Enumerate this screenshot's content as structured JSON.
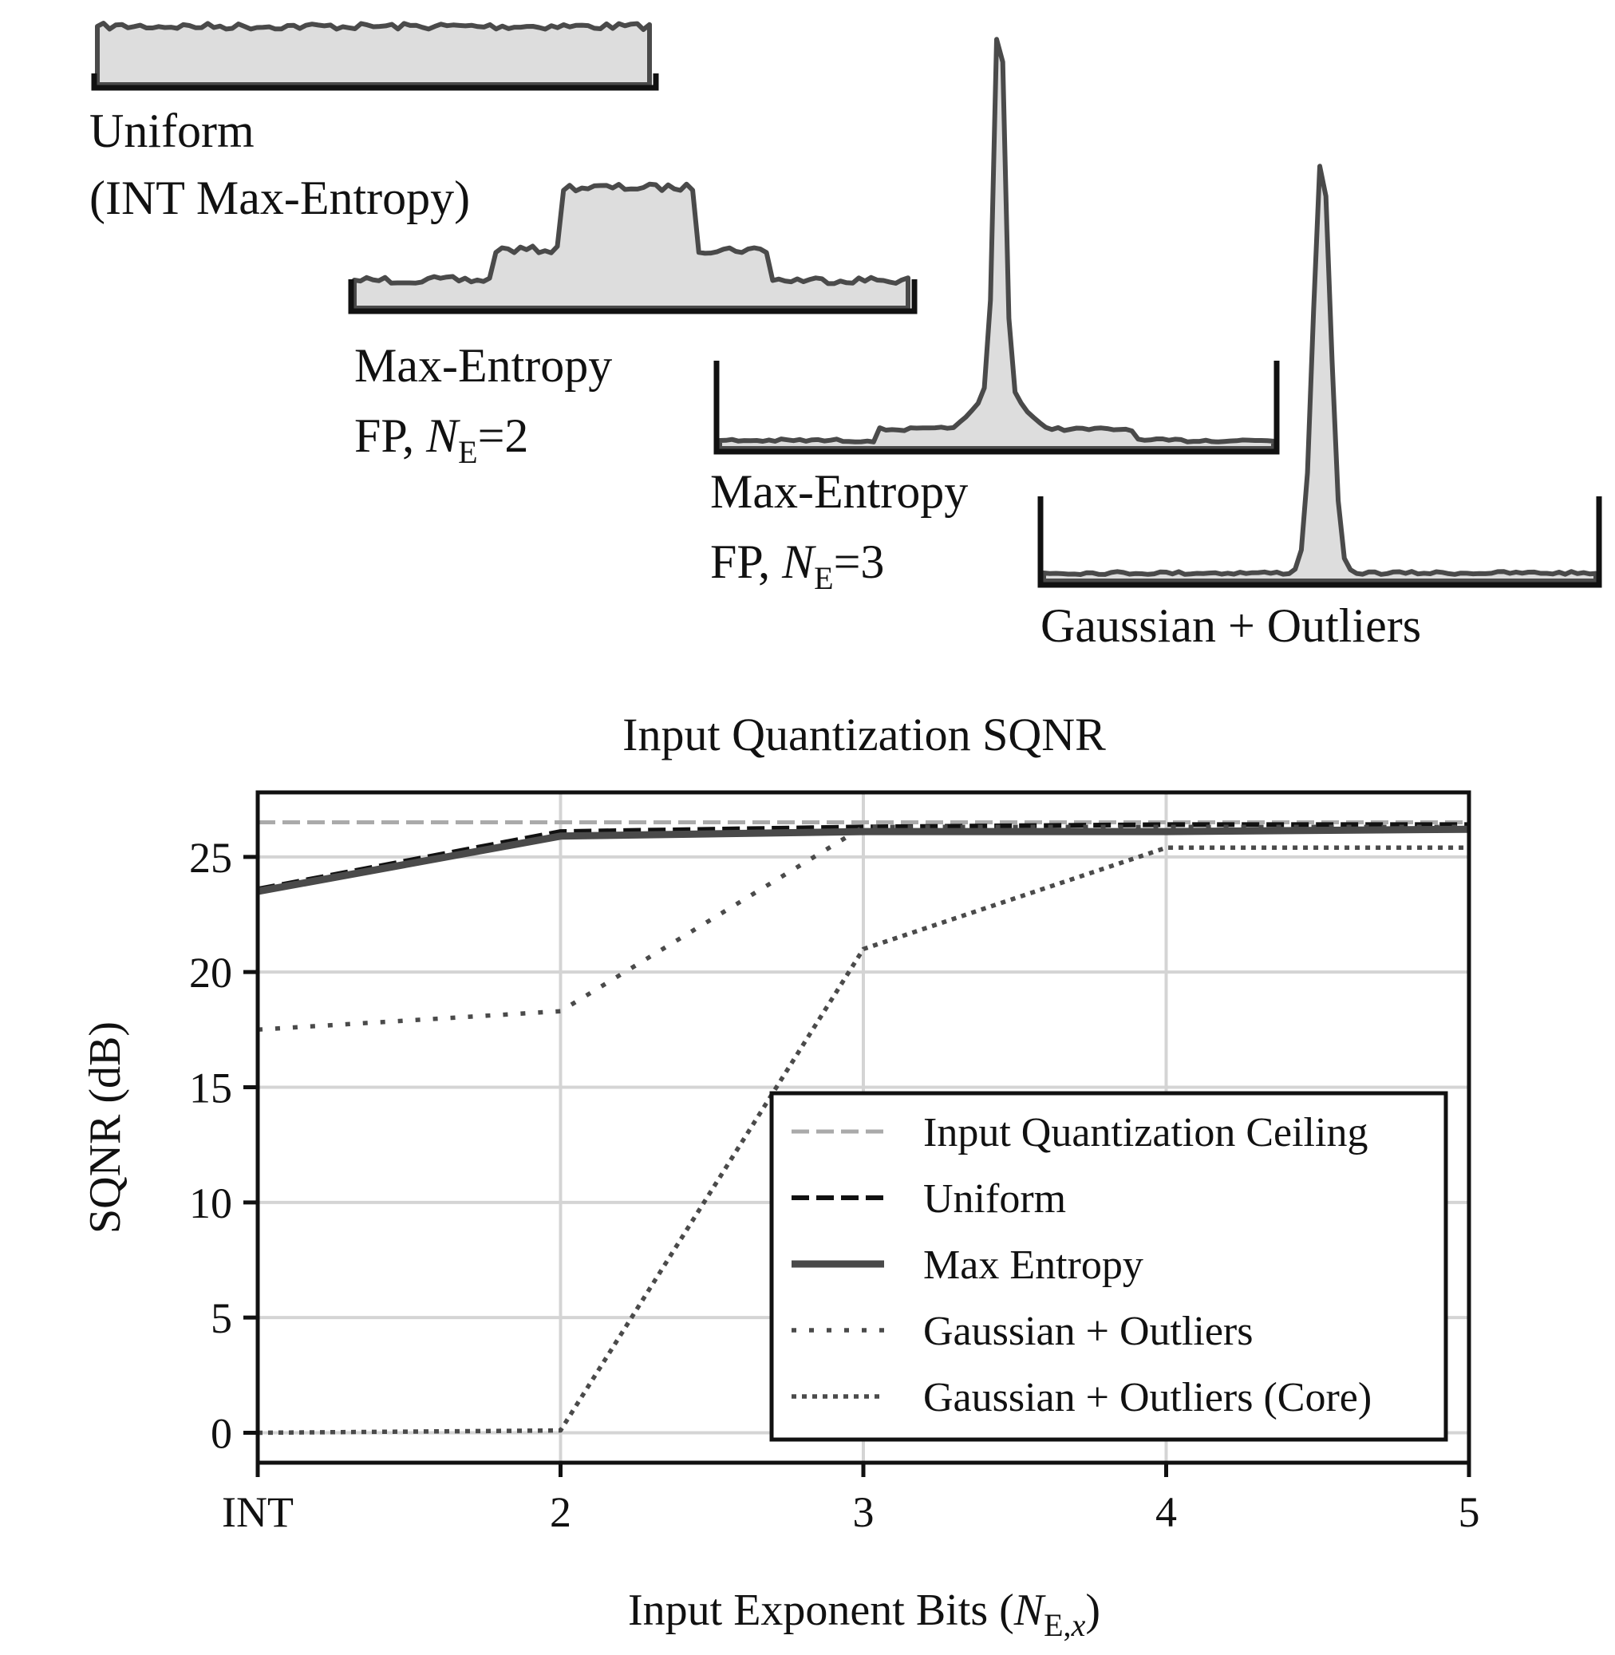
{
  "distributions": [
    {
      "id": "uniform",
      "label_lines": [
        "Uniform",
        "(INT Max-Entropy)"
      ]
    },
    {
      "id": "fp2",
      "label_lines": [
        "Max-Entropy",
        "FP, "
      ],
      "subscript_var": "N",
      "subscript": "E",
      "suffix": "=2"
    },
    {
      "id": "fp3",
      "label_lines": [
        "Max-Entropy",
        "FP, "
      ],
      "subscript_var": "N",
      "subscript": "E",
      "suffix": "=3"
    },
    {
      "id": "gauss",
      "label_lines": [
        "Gaussian + Outliers"
      ]
    }
  ],
  "colors": {
    "ceiling": "#aaaaaa",
    "series_dark": "#111111",
    "series_main": "#4a4a4a",
    "fill": "#dddddd",
    "grid": "#d4d4d4"
  },
  "chart_data": {
    "type": "line",
    "title": "Input Quantization SQNR",
    "xlabel_main": "Input Exponent Bits (",
    "xlabel_var": "N",
    "xlabel_sub": "E,",
    "xlabel_sub2": "x",
    "xlabel_end": ")",
    "ylabel": "SQNR (dB)",
    "categories": [
      "INT",
      "2",
      "3",
      "4",
      "5"
    ],
    "ylim": [
      -1.3,
      27.8
    ],
    "yticks": [
      0,
      5,
      10,
      15,
      20,
      25
    ],
    "grid": true,
    "legend_position": "lower-right",
    "series": [
      {
        "name": "Input Quantization Ceiling",
        "style": "dashed-light",
        "values": [
          26.5,
          26.5,
          26.5,
          26.5,
          26.5
        ]
      },
      {
        "name": "Uniform",
        "style": "dashed",
        "values": [
          23.6,
          26.1,
          26.3,
          26.4,
          26.4
        ]
      },
      {
        "name": "Max Entropy",
        "style": "solid",
        "values": [
          23.5,
          25.9,
          26.1,
          26.1,
          26.2
        ]
      },
      {
        "name": "Gaussian + Outliers",
        "style": "dotted-sparse",
        "values": [
          17.5,
          18.3,
          26.3,
          26.3,
          26.3
        ]
      },
      {
        "name": "Gaussian + Outliers (Core)",
        "style": "dotted-dense",
        "values": [
          0.0,
          0.1,
          21.0,
          25.4,
          25.4
        ]
      }
    ]
  }
}
